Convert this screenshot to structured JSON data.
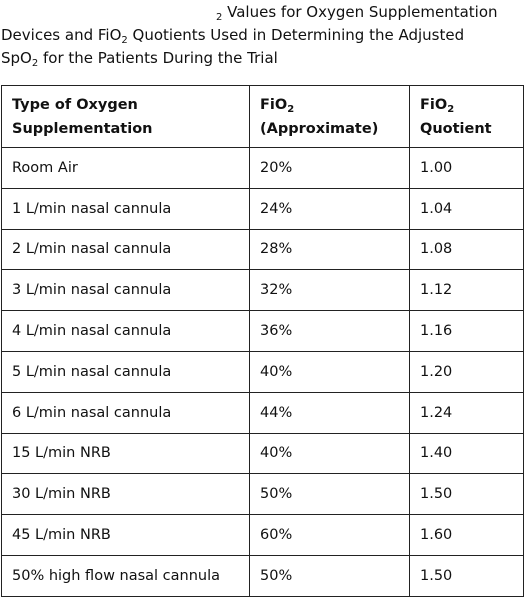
{
  "caption": {
    "lines": [
      [
        "2",
        " Values for Oxygen Supplementation"
      ],
      [
        "Devices and FiO",
        "2",
        " Quotients Used in Determining the Adjusted"
      ],
      [
        "SpO",
        "2",
        " for the Patients During the Trial"
      ]
    ]
  },
  "table": {
    "header": [
      [
        "Type of Oxygen",
        "Supplementation"
      ],
      [
        "FiO",
        "2",
        "(Approximate)"
      ],
      [
        "FiO",
        "2",
        "Quotient"
      ]
    ],
    "rows": [
      [
        "Room Air",
        "20%",
        "1.00"
      ],
      [
        "1 L/min nasal cannula",
        "24%",
        "1.04"
      ],
      [
        "2 L/min nasal cannula",
        "28%",
        "1.08"
      ],
      [
        "3 L/min nasal cannula",
        "32%",
        "1.12"
      ],
      [
        "4 L/min nasal cannula",
        "36%",
        "1.16"
      ],
      [
        "5 L/min nasal cannula",
        "40%",
        "1.20"
      ],
      [
        "6 L/min nasal cannula",
        "44%",
        "1.24"
      ],
      [
        "15 L/min NRB",
        "40%",
        "1.40"
      ],
      [
        "30 L/min NRB",
        "50%",
        "1.50"
      ],
      [
        "45 L/min NRB",
        "60%",
        "1.60"
      ],
      [
        "50% high flow nasal cannula",
        "50%",
        "1.50"
      ]
    ]
  }
}
